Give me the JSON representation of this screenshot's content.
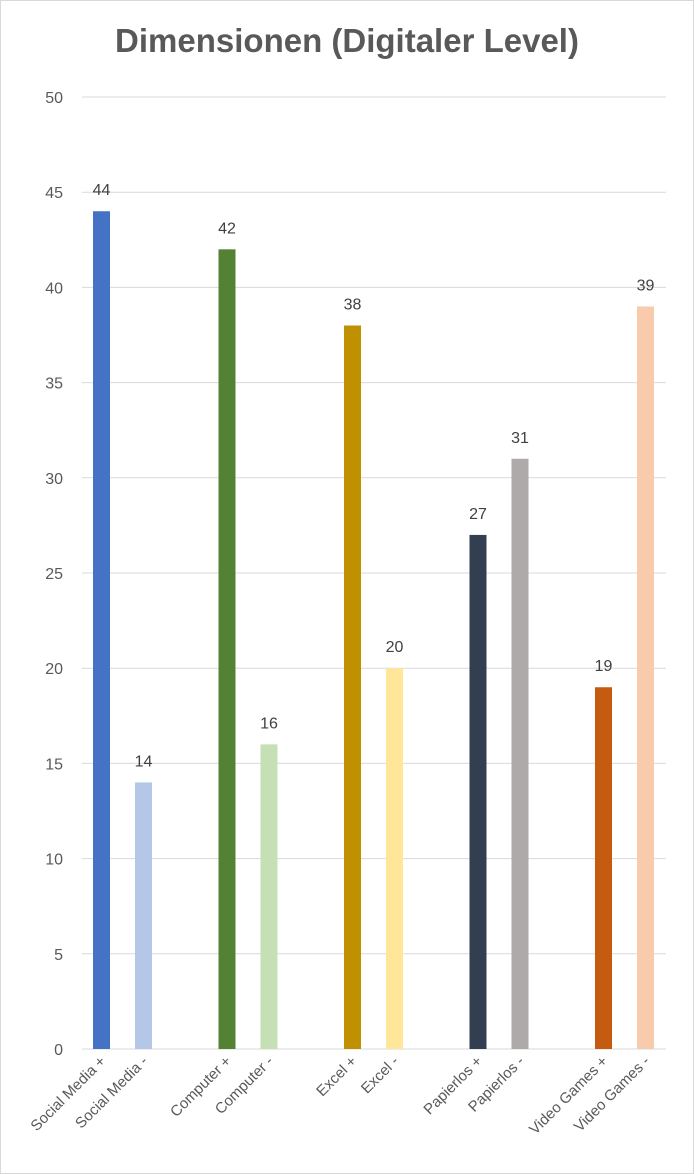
{
  "chart_data": {
    "type": "bar",
    "title": "Dimensionen (Digitaler Level)",
    "xlabel": "",
    "ylabel": "",
    "ylim": [
      0,
      50
    ],
    "yticks": [
      0,
      5,
      10,
      15,
      20,
      25,
      30,
      35,
      40,
      45,
      50
    ],
    "grid": true,
    "categories": [
      "Social Media +",
      "Social Media -",
      "Computer +",
      "Computer -",
      "Excel +",
      "Excel -",
      "Papierlos +",
      "Papierlos -",
      "Video Games +",
      "Video Games -"
    ],
    "values": [
      44,
      14,
      42,
      16,
      38,
      20,
      27,
      31,
      19,
      39
    ],
    "colors": [
      "#4472c4",
      "#b4c7e7",
      "#548235",
      "#c5e0b4",
      "#bf9000",
      "#ffe699",
      "#333f50",
      "#aeaaaa",
      "#c55a11",
      "#f8cbad"
    ]
  }
}
